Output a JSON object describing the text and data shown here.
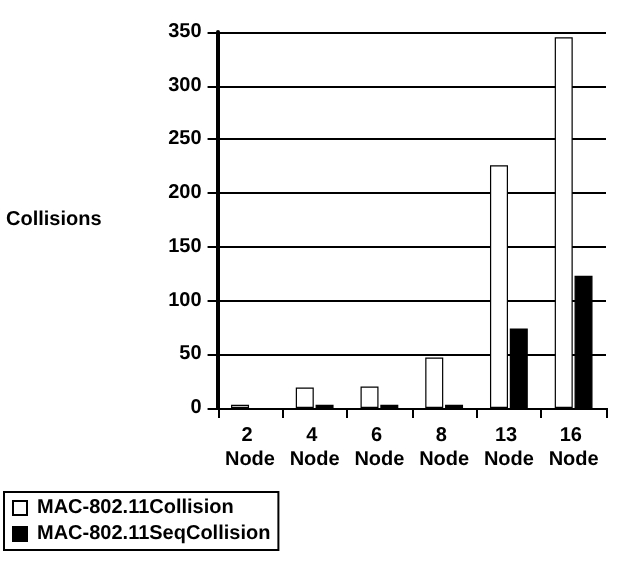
{
  "chart_data": {
    "type": "bar",
    "ylabel": "Collisions",
    "categories": [
      "2 Node",
      "4 Node",
      "6 Node",
      "8 Node",
      "13 Node",
      "16 Node"
    ],
    "series": [
      {
        "name": "MAC-802.11Collision",
        "color": "#ffffff",
        "values": [
          3,
          19,
          20,
          47,
          226,
          345
        ]
      },
      {
        "name": "MAC-802.11SeqCollision",
        "color": "#000000",
        "values": [
          null,
          3,
          3,
          3,
          74,
          123
        ]
      }
    ],
    "ylim": [
      0,
      350
    ],
    "yticks": [
      0,
      50,
      100,
      150,
      200,
      250,
      300,
      350
    ],
    "grid": "y",
    "legend": "bottom left"
  }
}
